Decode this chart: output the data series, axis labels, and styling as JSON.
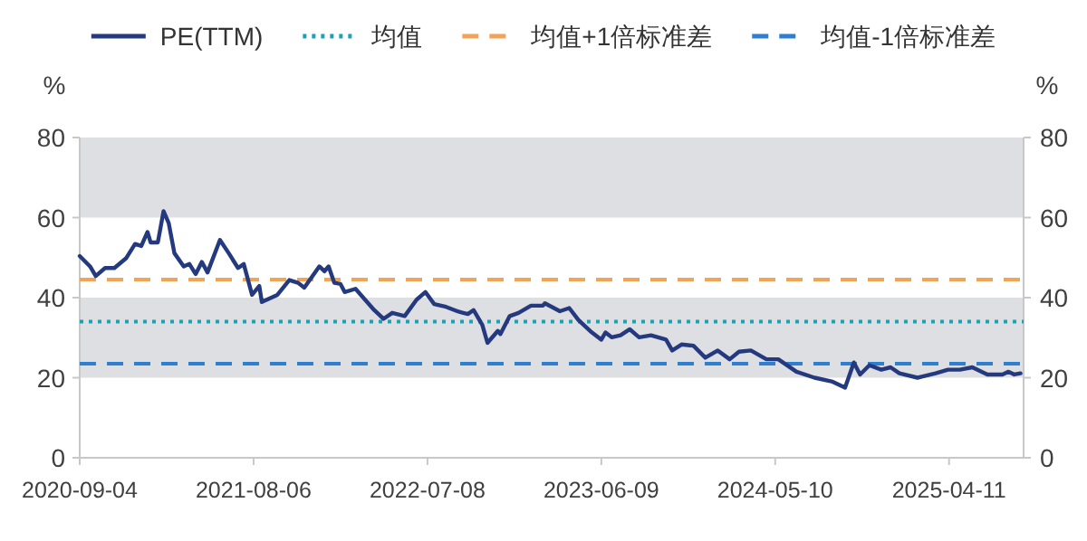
{
  "chart_data": {
    "type": "line",
    "ylabel": "%",
    "y2label": "%",
    "legend": "top",
    "x": [
      "2020-09-04",
      "2020-09-24",
      "2020-10-05",
      "2020-10-23",
      "2020-11-10",
      "2020-12-03",
      "2020-12-20",
      "2021-01-01",
      "2021-01-13",
      "2021-01-19",
      "2021-02-02",
      "2021-02-13",
      "2021-02-23",
      "2021-03-06",
      "2021-03-24",
      "2021-04-04",
      "2021-04-16",
      "2021-04-28",
      "2021-05-09",
      "2021-06-02",
      "2021-06-19",
      "2021-07-07",
      "2021-07-18",
      "2021-08-03",
      "2021-08-17",
      "2021-08-22",
      "2021-09-21",
      "2021-10-14",
      "2021-10-31",
      "2021-11-12",
      "2021-12-11",
      "2021-12-21",
      "2021-12-29",
      "2022-01-09",
      "2022-01-21",
      "2022-01-29",
      "2022-02-19",
      "2022-03-27",
      "2022-04-14",
      "2022-05-01",
      "2022-05-25",
      "2022-06-17",
      "2022-07-04",
      "2022-07-21",
      "2022-08-13",
      "2022-09-06",
      "2022-09-24",
      "2022-10-05",
      "2022-10-22",
      "2022-11-01",
      "2022-11-21",
      "2022-11-26",
      "2022-12-14",
      "2022-12-31",
      "2023-01-24",
      "2023-02-16",
      "2023-02-20",
      "2023-03-21",
      "2023-04-08",
      "2023-04-26",
      "2023-05-19",
      "2023-06-09",
      "2023-06-17",
      "2023-06-29",
      "2023-07-16",
      "2023-08-03",
      "2023-08-21",
      "2023-09-13",
      "2023-10-12",
      "2023-10-24",
      "2023-11-11",
      "2023-12-04",
      "2023-12-27",
      "2024-01-20",
      "2024-02-12",
      "2024-03-01",
      "2024-03-24",
      "2024-04-23",
      "2024-05-16",
      "2024-06-20",
      "2024-07-25",
      "2024-08-29",
      "2024-09-22",
      "2024-10-09",
      "2024-10-21",
      "2024-11-08",
      "2024-12-01",
      "2024-12-19",
      "2025-01-05",
      "2025-02-09",
      "2025-03-16",
      "2025-04-09",
      "2025-05-02",
      "2025-05-26",
      "2025-06-24",
      "2025-07-23",
      "2025-08-04",
      "2025-08-15",
      "2025-08-27"
    ],
    "series": [
      {
        "name": "PE(TTM)",
        "color": "#253a7e",
        "values": [
          50.4,
          47.8,
          45.4,
          47.4,
          47.4,
          49.9,
          53.4,
          52.9,
          56.4,
          53.8,
          53.8,
          61.6,
          58.6,
          51.1,
          47.8,
          48.4,
          45.9,
          48.9,
          46.3,
          54.4,
          51.1,
          47.4,
          48.4,
          40.7,
          42.9,
          38.9,
          40.7,
          44.4,
          43.7,
          42.5,
          47.8,
          46.6,
          47.8,
          43.7,
          43.4,
          41.4,
          42.2,
          36.9,
          34.7,
          36.2,
          35.4,
          39.5,
          41.4,
          38.4,
          37.7,
          36.5,
          35.9,
          36.9,
          33.2,
          28.7,
          31.7,
          30.9,
          35.4,
          36.2,
          38.0,
          38.0,
          38.6,
          36.6,
          37.4,
          34.4,
          31.6,
          29.5,
          31.3,
          30.1,
          30.6,
          32.1,
          30.1,
          30.6,
          29.5,
          26.8,
          28.3,
          28.0,
          25.0,
          26.8,
          24.6,
          26.5,
          26.8,
          24.6,
          24.6,
          21.5,
          20.0,
          19.0,
          17.5,
          23.8,
          20.8,
          23.1,
          22.0,
          22.6,
          21.1,
          20.0,
          21.1,
          22.0,
          22.0,
          22.6,
          20.8,
          20.8,
          21.5,
          20.8,
          21.1
        ]
      }
    ],
    "ref_lines": [
      {
        "axis": "y",
        "value": 34,
        "label": "均值",
        "color": "#1ba3b5",
        "line_style": "dotted"
      },
      {
        "axis": "y",
        "value": 44.5,
        "label": "均值+1倍标准差",
        "color": "#f0a457",
        "line_style": "dashed"
      },
      {
        "axis": "y",
        "value": 23.5,
        "label": "均值-1倍标准差",
        "color": "#2f7fd0",
        "line_style": "dashed"
      }
    ],
    "bands": [
      {
        "axis": "y",
        "from": 60,
        "to": 80,
        "color": "#dedfe2"
      },
      {
        "axis": "y",
        "from": 20,
        "to": 40,
        "color": "#dedfe2"
      }
    ],
    "xlim": [
      "2020-09-04",
      "2025-09-02"
    ],
    "xticks": [
      "2020-09-04",
      "2021-08-06",
      "2022-07-08",
      "2023-06-09",
      "2024-05-10",
      "2025-04-11"
    ],
    "ylim": [
      0,
      80
    ],
    "yticks": [
      0,
      20,
      40,
      60,
      80
    ],
    "y2lim": [
      0,
      80
    ],
    "y2ticks": [
      0,
      20,
      40,
      60,
      80
    ]
  }
}
